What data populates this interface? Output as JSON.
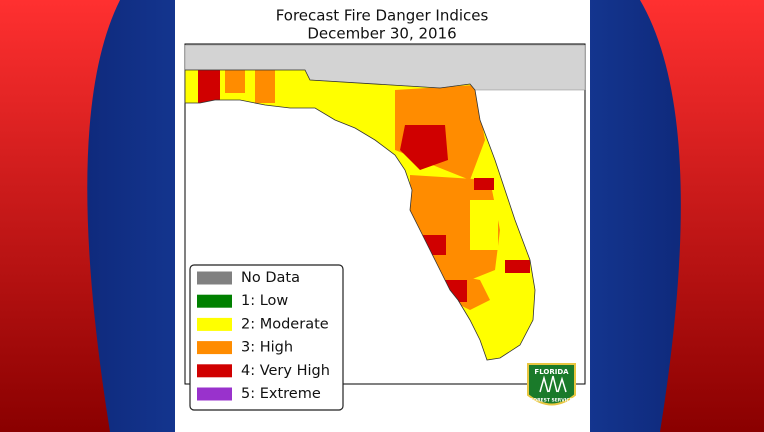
{
  "title": [
    "Forecast Fire Danger Indices",
    "December 30, 2016"
  ],
  "legend": [
    {
      "label": "No Data",
      "color": "#808080"
    },
    {
      "label": "1: Low",
      "color": "#008000"
    },
    {
      "label": "2: Moderate",
      "color": "#ffff00"
    },
    {
      "label": "3: High",
      "color": "#ff8c00"
    },
    {
      "label": "4: Very High",
      "color": "#d00000"
    },
    {
      "label": "5: Extreme",
      "color": "#9932cc"
    }
  ],
  "logo": {
    "top": "FLORIDA",
    "bottom": "FOREST SERVICE"
  }
}
